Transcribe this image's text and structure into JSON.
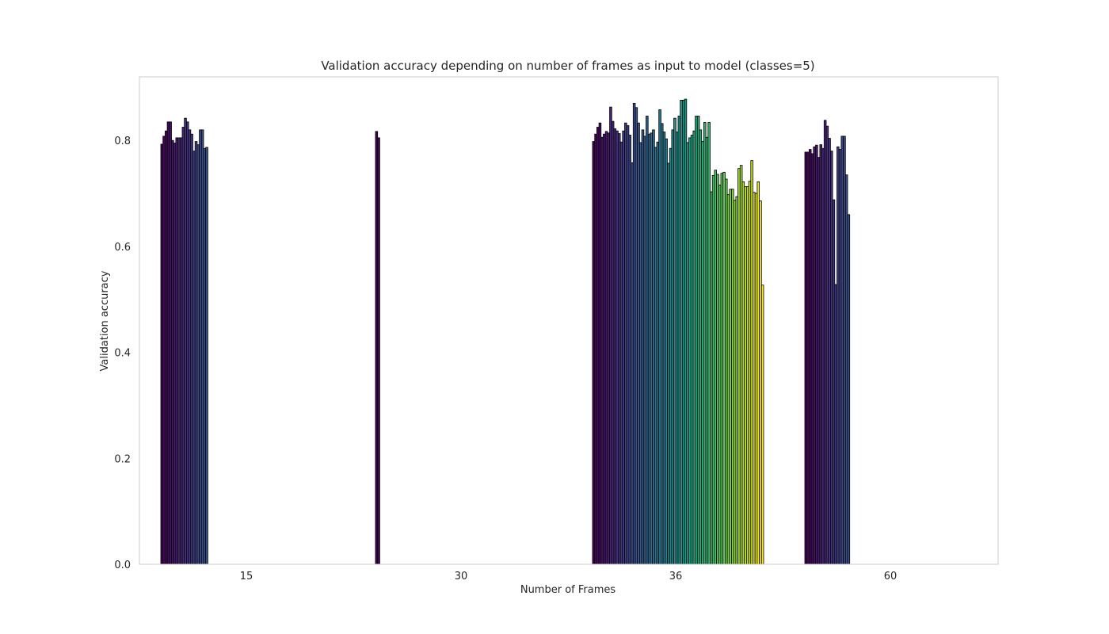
{
  "chart_data": {
    "type": "bar",
    "title": "Validation accuracy depending on number of frames as input to model (classes=5)",
    "xlabel": "Number of Frames",
    "ylabel": "Validation accuracy",
    "ylim": [
      0,
      0.92
    ],
    "yticks": [
      0.0,
      0.2,
      0.4,
      0.6,
      0.8
    ],
    "ytick_labels": [
      "0.0",
      "0.2",
      "0.4",
      "0.6",
      "0.8"
    ],
    "grid": false,
    "colormap": "viridis",
    "categories": [
      "15",
      "30",
      "36",
      "60"
    ],
    "groups": [
      {
        "category": "15",
        "values": [
          0.793,
          0.808,
          0.818,
          0.835,
          0.835,
          0.8,
          0.795,
          0.805,
          0.805,
          0.805,
          0.825,
          0.842,
          0.835,
          0.82,
          0.812,
          0.78,
          0.798,
          0.792,
          0.82,
          0.82,
          0.785,
          0.787
        ]
      },
      {
        "category": "30",
        "values": [
          0.817,
          0.805
        ]
      },
      {
        "category": "36",
        "values": [
          0.798,
          0.812,
          0.825,
          0.833,
          0.806,
          0.812,
          0.817,
          0.814,
          0.863,
          0.836,
          0.822,
          0.818,
          0.813,
          0.797,
          0.818,
          0.833,
          0.828,
          0.81,
          0.758,
          0.87,
          0.862,
          0.833,
          0.796,
          0.82,
          0.808,
          0.846,
          0.812,
          0.814,
          0.82,
          0.787,
          0.797,
          0.858,
          0.832,
          0.816,
          0.803,
          0.757,
          0.785,
          0.82,
          0.842,
          0.816,
          0.846,
          0.876,
          0.876,
          0.878,
          0.796,
          0.805,
          0.81,
          0.818,
          0.846,
          0.846,
          0.82,
          0.798,
          0.834,
          0.806,
          0.834,
          0.703,
          0.734,
          0.744,
          0.736,
          0.716,
          0.738,
          0.74,
          0.727,
          0.698,
          0.708,
          0.708,
          0.687,
          0.694,
          0.747,
          0.753,
          0.722,
          0.713,
          0.713,
          0.723,
          0.762,
          0.702,
          0.7,
          0.722,
          0.686,
          0.527
        ]
      },
      {
        "category": "60",
        "values": [
          0.778,
          0.778,
          0.783,
          0.775,
          0.788,
          0.791,
          0.768,
          0.792,
          0.785,
          0.838,
          0.827,
          0.804,
          0.78,
          0.688,
          0.528,
          0.788,
          0.783,
          0.808,
          0.808,
          0.735,
          0.66
        ]
      }
    ]
  }
}
